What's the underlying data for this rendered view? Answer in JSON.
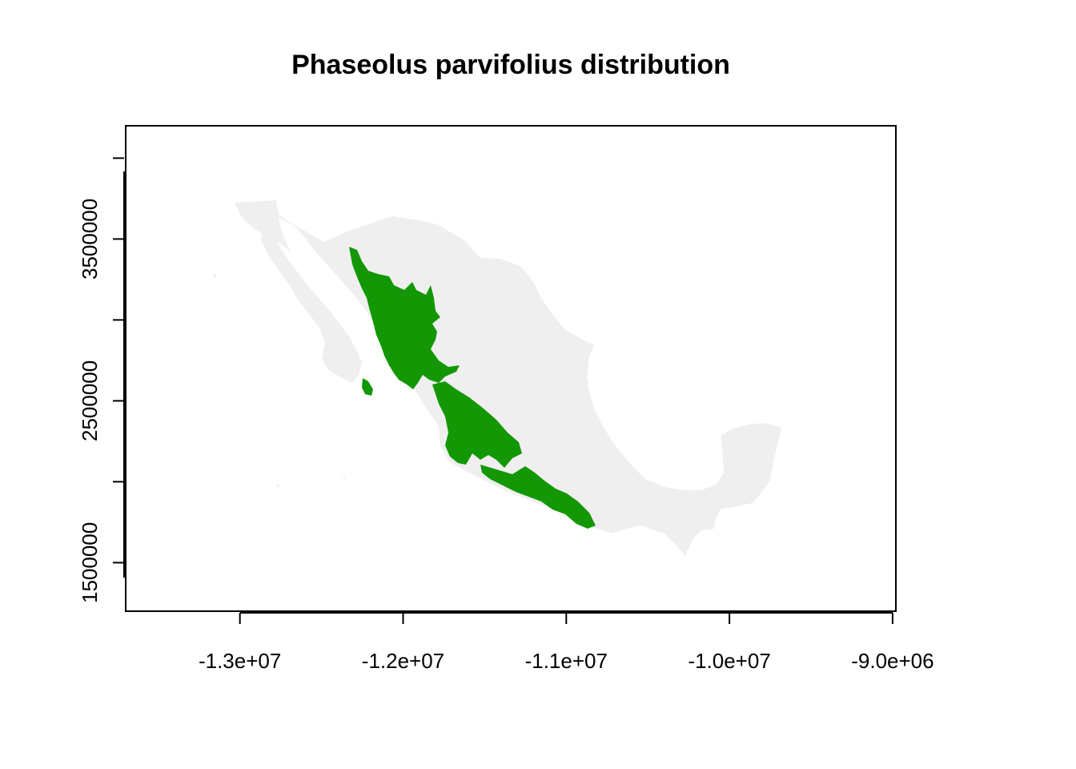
{
  "title": "Phaseolus parvifolius distribution",
  "colors": {
    "background": "#ffffff",
    "country_fill": "#efefef",
    "distribution_fill": "#139704",
    "axes": "#000000"
  },
  "map_data": {
    "type": "raster-map",
    "region": "Mexico",
    "projection_units": "metres (Web Mercator)",
    "xlim": [
      -13700000,
      -8980000
    ],
    "ylim": [
      1200000,
      4200000
    ],
    "x_ticks": [
      {
        "value": -13000000,
        "label": "-1.3e+07"
      },
      {
        "value": -12000000,
        "label": "-1.2e+07"
      },
      {
        "value": -11000000,
        "label": "-1.1e+07"
      },
      {
        "value": -10000000,
        "label": "-1.0e+07"
      },
      {
        "value": -9000000,
        "label": "-9.0e+06"
      }
    ],
    "y_ticks": [
      {
        "value": 1500000,
        "label": "1500000",
        "labeled": true
      },
      {
        "value": 2000000,
        "label": "",
        "labeled": false
      },
      {
        "value": 2500000,
        "label": "2500000",
        "labeled": true
      },
      {
        "value": 3000000,
        "label": "",
        "labeled": false
      },
      {
        "value": 3500000,
        "label": "3500000",
        "labeled": true
      },
      {
        "value": 4000000,
        "label": "",
        "labeled": false
      }
    ],
    "layers": [
      "country-background",
      "species-distribution"
    ],
    "legend": "none",
    "grid": false
  }
}
